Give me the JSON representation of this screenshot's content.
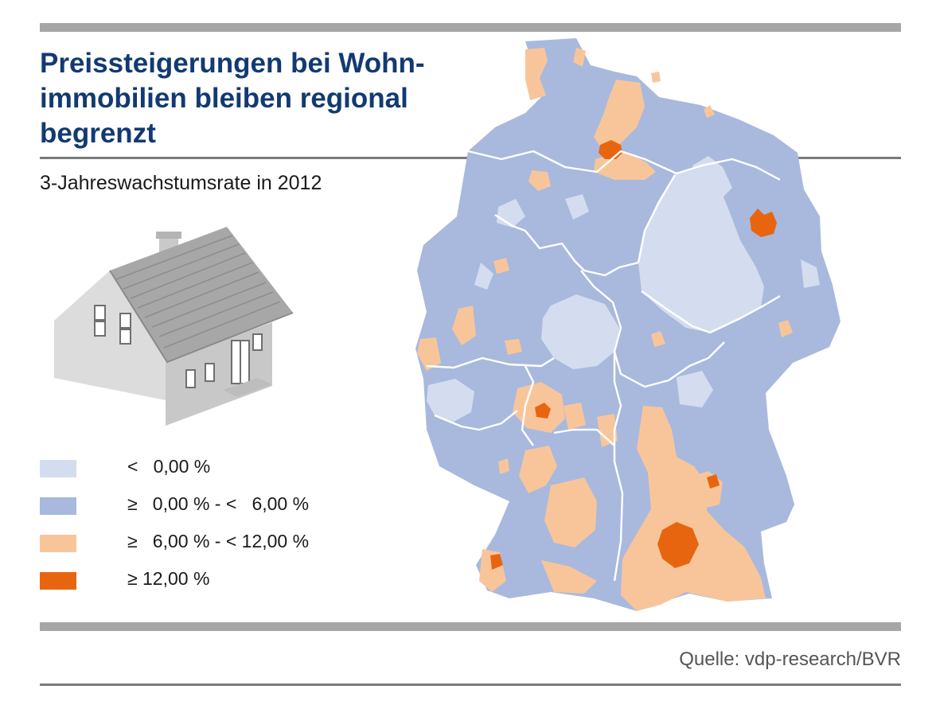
{
  "header": {
    "title": "Preissteigerungen bei Wohn-\nimmobilien bleiben regional\nbegrenzt",
    "subtitle": "3-Jahreswachstumsrate in 2012"
  },
  "legend": [
    {
      "label": "<   0,00 %",
      "color": "#d4ddef"
    },
    {
      "label": "≥   0,00 % - <   6,00 %",
      "color": "#a8b9dd"
    },
    {
      "label": "≥   6,00 % - < 12,00 %",
      "color": "#f8c59b"
    },
    {
      "label": "≥ 12,00 %",
      "color": "#e8650f"
    }
  ],
  "illustration": {
    "icon": "house-icon"
  },
  "map": {
    "region": "Germany",
    "year": 2012,
    "metric": "3-Jahreswachstumsrate"
  },
  "footer": {
    "source": "Quelle: vdp-research/BVR"
  },
  "colors": {
    "title": "#123a72",
    "rule": "#a6a6a6",
    "rule_dark": "#7a7a7a",
    "lt0": "#d4ddef",
    "r0_6": "#a8b9dd",
    "r6_12": "#f8c59b",
    "ge12": "#e8650f",
    "border": "#ffffff"
  }
}
